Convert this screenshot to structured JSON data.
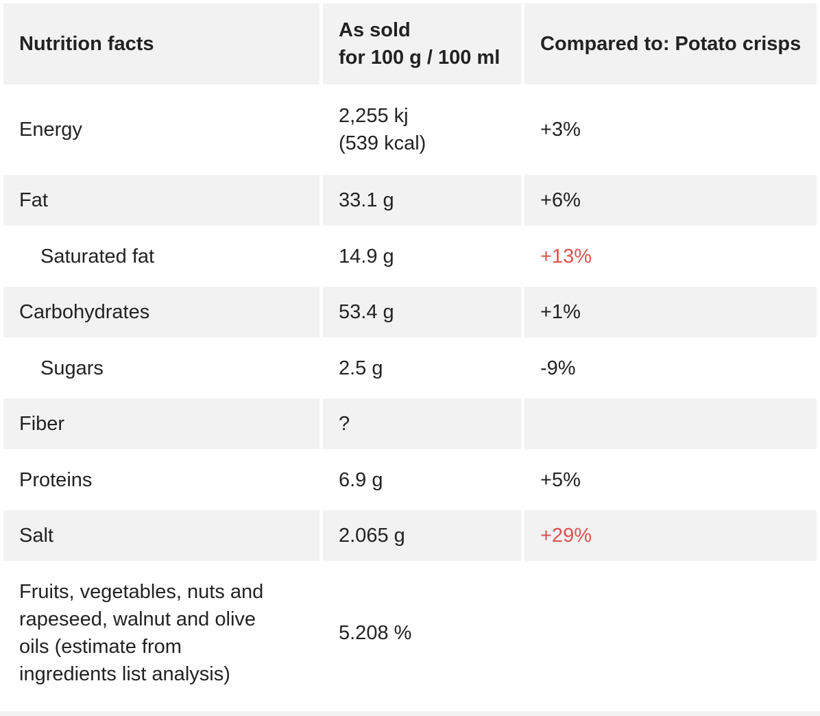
{
  "header": {
    "col1": "Nutrition facts",
    "col2_line1": "As sold",
    "col2_line2": "for 100 g / 100 ml",
    "col3": "Compared to: Potato crisps"
  },
  "rows": [
    {
      "label": "Energy",
      "value_line1": "2,255 kj",
      "value_line2": "(539 kcal)",
      "compare": "+3%",
      "compare_status": "normal"
    },
    {
      "label": "Fat",
      "value": "33.1 g",
      "compare": "+6%",
      "compare_status": "normal"
    },
    {
      "label": "Saturated fat",
      "value": "14.9 g",
      "compare": "+13%",
      "compare_status": "high"
    },
    {
      "label": "Carbohydrates",
      "value": "53.4 g",
      "compare": "+1%",
      "compare_status": "normal"
    },
    {
      "label": "Sugars",
      "value": "2.5 g",
      "compare": "-9%",
      "compare_status": "normal"
    },
    {
      "label": "Fiber",
      "value": "?",
      "compare": "",
      "compare_status": "normal"
    },
    {
      "label": "Proteins",
      "value": "6.9 g",
      "compare": "+5%",
      "compare_status": "normal"
    },
    {
      "label": "Salt",
      "value": "2.065 g",
      "compare": "+29%",
      "compare_status": "high"
    },
    {
      "label_lines": [
        "Fruits, vegetables, nuts and",
        "rapeseed, walnut and olive",
        "oils (estimate from",
        "ingredients list analysis)"
      ],
      "value": "5.208 %",
      "compare": "",
      "compare_status": "normal"
    }
  ],
  "colors": {
    "high": "#d9534f",
    "text": "#222222",
    "shade": "#f2f2f2"
  }
}
